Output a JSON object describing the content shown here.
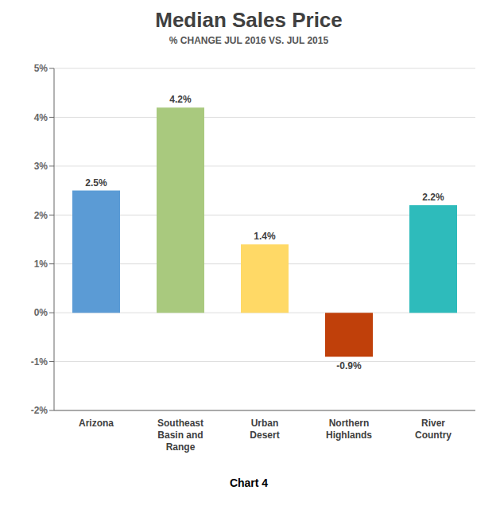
{
  "chart_data": {
    "type": "bar",
    "title": "Median Sales Price",
    "subtitle": "% CHANGE JUL 2016 VS. JUL 2015",
    "annotations": [
      "Chart 4"
    ],
    "categories": [
      "Arizona",
      "Southeast\nBasin and\nRange",
      "Urban\nDesert",
      "Northern\nHighlands",
      "River\nCountry"
    ],
    "values": [
      2.5,
      4.2,
      1.4,
      -0.9,
      2.2
    ],
    "value_labels": [
      "2.5%",
      "4.2%",
      "1.4%",
      "-0.9%",
      "2.2%"
    ],
    "colors": [
      "#5B9BD5",
      "#A9C97E",
      "#FFD966",
      "#C0400A",
      "#2EBBBB"
    ],
    "ylim": [
      -2,
      5
    ],
    "yticks": [
      {
        "value": -2,
        "label": "-2%"
      },
      {
        "value": -1,
        "label": "-1%"
      },
      {
        "value": 0,
        "label": "0%"
      },
      {
        "value": 1,
        "label": "1%"
      },
      {
        "value": 2,
        "label": "2%"
      },
      {
        "value": 3,
        "label": "3%"
      },
      {
        "value": 4,
        "label": "4%"
      },
      {
        "value": 5,
        "label": "5%"
      }
    ],
    "grid": true,
    "data_labels": true
  }
}
